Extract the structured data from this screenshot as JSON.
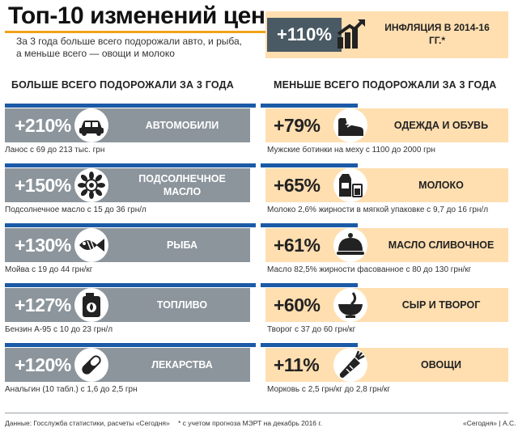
{
  "title": "Топ-10 изменений цен",
  "subtitle": "За 3 года больше всего подорожали авто, и рыба, а меньше всего — овощи и молоко",
  "inflation": {
    "value": "+110%",
    "label": "ИНФЛЯЦИЯ В 2014-16 ГГ.*",
    "icon": "chart-arrow-icon"
  },
  "left_heading": "БОЛЬШЕ ВСЕГО ПОДОРОЖАЛИ ЗА 3 ГОДА",
  "right_heading": "МЕНЬШЕ ВСЕГО ПОДОРОЖАЛИ ЗА 3 ГОДА",
  "colors": {
    "left_bar": "#8c959c",
    "right_bar": "#ffdeb0",
    "accent": "#1b5aa6",
    "title_underline": "#f2a21a",
    "inflation_badge": "#4a5a64"
  },
  "chart_data": [
    {
      "type": "bar",
      "title": "БОЛЬШЕ ВСЕГО ПОДОРОЖАЛИ ЗА 3 ГОДА",
      "categories": [
        "АВТОМОБИЛИ",
        "ПОДСОЛНЕЧНОЕ МАСЛО",
        "РЫБА",
        "ТОПЛИВО",
        "ЛЕКАРСТВА"
      ],
      "labels": [
        "+210%",
        "+150%",
        "+130%",
        "+127%",
        "+120%"
      ],
      "values": [
        210,
        150,
        130,
        127,
        120
      ],
      "unit": "%",
      "notes": [
        "Ланос с 69 до 213 тыс. грн",
        "Подсолнечное масло с 15 до 36 грн/л",
        "Мойва с 19 до 44 грн/кг",
        "Бензин А-95 с 10 до 23 грн/л",
        "Анальгин (10 табл.) с 1,6 до 2,5 грн"
      ],
      "icons": [
        "car-icon",
        "sunflower-icon",
        "fish-icon",
        "fuel-can-icon",
        "pill-icon"
      ]
    },
    {
      "type": "bar",
      "title": "МЕНЬШЕ ВСЕГО ПОДОРОЖАЛИ ЗА 3 ГОДА",
      "categories": [
        "ОДЕЖДА И ОБУВЬ",
        "МОЛОКО",
        "МАСЛО СЛИВОЧНОЕ",
        "СЫР И ТВОРОГ",
        "ОВОЩИ"
      ],
      "labels": [
        "+79%",
        "+65%",
        "+61%",
        "+60%",
        "+11%"
      ],
      "values": [
        79,
        65,
        61,
        60,
        11
      ],
      "unit": "%",
      "notes": [
        "Мужские ботинки на меху с 1100 до 2000 грн",
        "Молоко 2,6% жирности в мягкой упаковке с 9,7 до 16 грн/л",
        "Масло 82,5% жирности фасованное с 80 до 130 грн/кг",
        "Творог с 37 до 60 грн/кг",
        "Морковь с 2,5 грн/кг до 2,8 грн/кг"
      ],
      "icons": [
        "shoe-icon",
        "milk-icon",
        "butter-dish-icon",
        "bowl-icon",
        "carrot-icon"
      ]
    }
  ],
  "footer": {
    "source": "Данные: Госслужба статистики, расчеты «Сегодня»",
    "note": "* с учетом прогноза МЭРТ на декабрь 2016 г.",
    "credit": "«Сегодня» | А.С."
  }
}
